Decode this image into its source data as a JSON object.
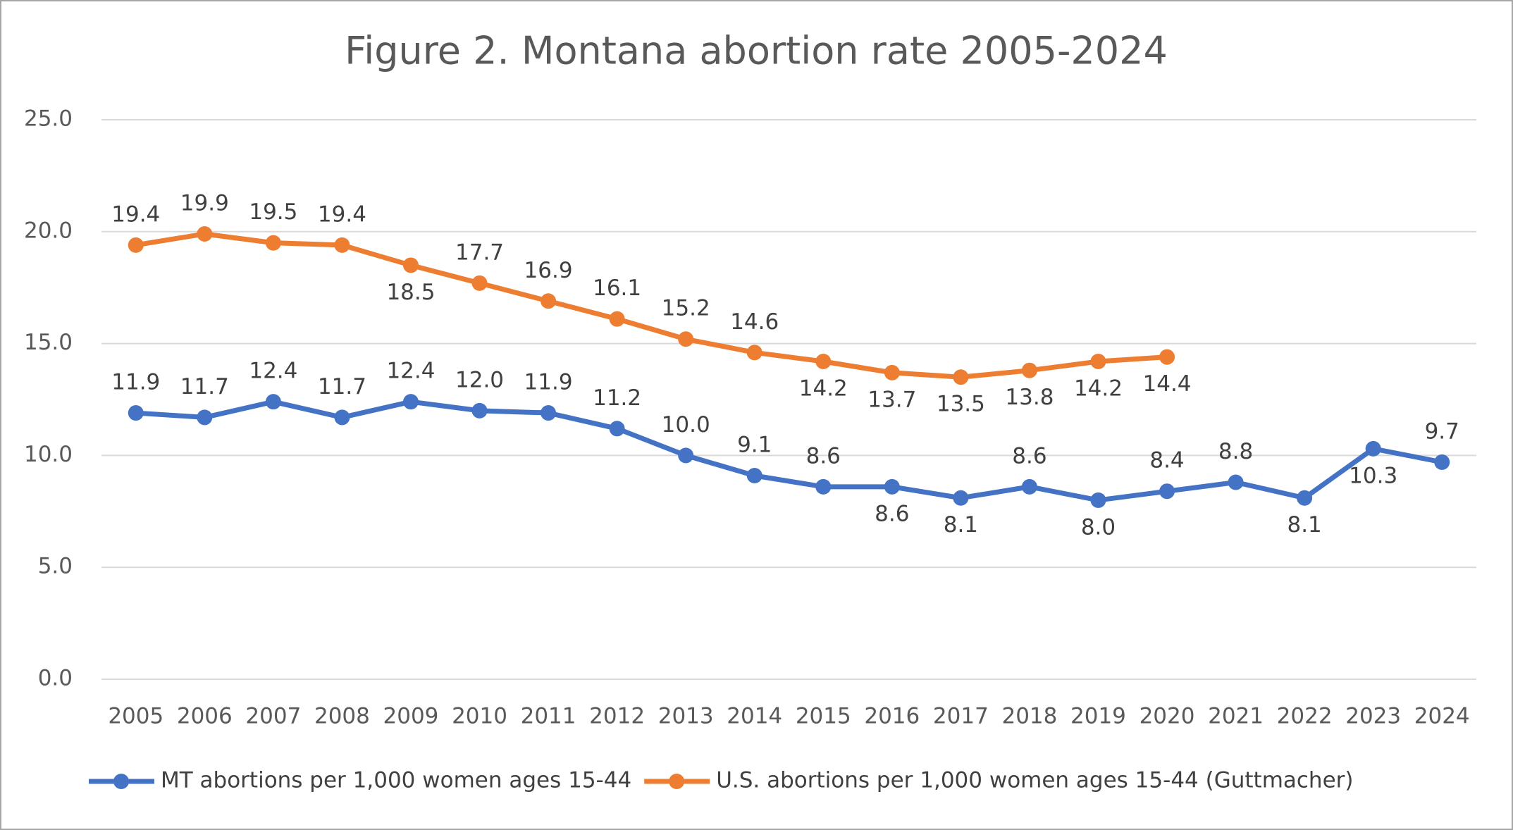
{
  "chart_data": {
    "type": "line",
    "title": "Figure 2. Montana abortion rate 2005-2024",
    "categories": [
      "2005",
      "2006",
      "2007",
      "2008",
      "2009",
      "2010",
      "2011",
      "2012",
      "2013",
      "2014",
      "2015",
      "2016",
      "2017",
      "2018",
      "2019",
      "2020",
      "2021",
      "2022",
      "2023",
      "2024"
    ],
    "series": [
      {
        "name": "MT abortions per 1,000 women ages 15-44",
        "color": "#4472c4",
        "values": [
          11.9,
          11.7,
          12.4,
          11.7,
          12.4,
          12.0,
          11.9,
          11.2,
          10.0,
          9.1,
          8.6,
          8.6,
          8.1,
          8.6,
          8.0,
          8.4,
          8.8,
          8.1,
          10.3,
          9.7
        ],
        "value_labels": [
          "11.9",
          "11.7",
          "12.4",
          "11.7",
          "12.4",
          "12.0",
          "11.9",
          "11.2",
          "10.0",
          "9.1",
          "8.6",
          "8.6",
          "8.1",
          "8.6",
          "8.0",
          "8.4",
          "8.8",
          "8.1",
          "10.3",
          "9.7"
        ]
      },
      {
        "name": "U.S. abortions per 1,000 women ages 15-44 (Guttmacher)",
        "color": "#ed7d31",
        "values": [
          19.4,
          19.9,
          19.5,
          19.4,
          18.5,
          17.7,
          16.9,
          16.1,
          15.2,
          14.6,
          14.2,
          13.7,
          13.5,
          13.8,
          14.2,
          14.4,
          null,
          null,
          null,
          null
        ],
        "value_labels": [
          "19.4",
          "19.9",
          "19.5",
          "19.4",
          "18.5",
          "17.7",
          "16.9",
          "16.1",
          "15.2",
          "14.6",
          "14.2",
          "13.7",
          "13.5",
          "13.8",
          "14.2",
          "14.4",
          null,
          null,
          null,
          null
        ]
      }
    ],
    "ylim": [
      0,
      25
    ],
    "yticks": [
      {
        "value": 0,
        "label": "0.0"
      },
      {
        "value": 5,
        "label": "5.0"
      },
      {
        "value": 10,
        "label": "10.0"
      },
      {
        "value": 15,
        "label": "15.0"
      },
      {
        "value": 20,
        "label": "20.0"
      },
      {
        "value": 25,
        "label": "25.0"
      }
    ],
    "grid": true,
    "legend": "bottom"
  }
}
